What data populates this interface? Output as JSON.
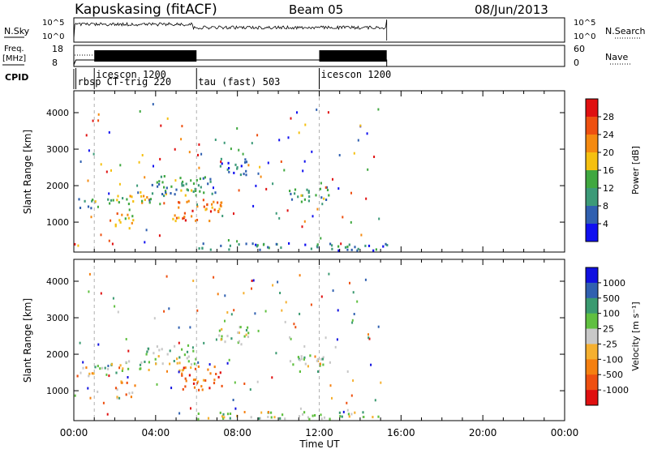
{
  "header": {
    "station": "Kapuskasing (fitACF)",
    "beam": "Beam 05",
    "date": "08/Jun/2013"
  },
  "panels": {
    "noise": {
      "left_label": "N.Sky",
      "right_label": "N.Search",
      "left_ticks": [
        "10^5",
        "10^0"
      ],
      "right_ticks": [
        "10^5",
        "10^0"
      ]
    },
    "freq": {
      "left_label_1": "Freq.",
      "left_label_2": "[MHz]",
      "right_label": "Nave",
      "left_ticks": [
        "18",
        "8"
      ],
      "right_ticks": [
        "60",
        "0"
      ]
    },
    "cpid": {
      "label": "CPID"
    }
  },
  "chart_data": [
    {
      "type": "heatmap",
      "name": "power",
      "ylabel": "Slant Range [km]",
      "xlabel": "Time UT",
      "xlim": [
        0,
        24
      ],
      "ylim": [
        180,
        4600
      ],
      "x_ticks": [
        "00:00",
        "04:00",
        "08:00",
        "12:00",
        "16:00",
        "20:00",
        "00:00"
      ],
      "y_ticks": [
        1000,
        2000,
        3000,
        4000
      ],
      "colorbar": {
        "label": "Power [dB]",
        "ticks": [
          "28",
          "24",
          "20",
          "16",
          "12",
          "8",
          "4"
        ],
        "colors": [
          "#e01010",
          "#ee5010",
          "#f58a10",
          "#f5c010",
          "#40a840",
          "#3c9a78",
          "#3060b0",
          "#1010f0"
        ]
      },
      "clusters": [
        {
          "t": [
            0.05,
            1.0
          ],
          "r": [
            1350,
            1700
          ],
          "level": 6
        },
        {
          "t": [
            1.0,
            3.8
          ],
          "r": [
            1500,
            1850
          ],
          "level": 4
        },
        {
          "t": [
            2.0,
            3.0
          ],
          "r": [
            800,
            1300
          ],
          "level": 3
        },
        {
          "t": [
            3.5,
            6.0
          ],
          "r": [
            1750,
            2300
          ],
          "level": 5
        },
        {
          "t": [
            4.8,
            7.2
          ],
          "r": [
            1050,
            1700
          ],
          "level": 2
        },
        {
          "t": [
            5.8,
            7.0
          ],
          "r": [
            1800,
            2300
          ],
          "level": 6
        },
        {
          "t": [
            10.5,
            12.5
          ],
          "r": [
            1550,
            2000
          ],
          "level": 5
        },
        {
          "t": [
            6.0,
            15.3
          ],
          "r": [
            250,
            450
          ],
          "level": 6
        },
        {
          "t": [
            7.0,
            8.5
          ],
          "r": [
            2300,
            2800
          ],
          "level": 6
        }
      ]
    },
    {
      "type": "heatmap",
      "name": "velocity",
      "ylabel": "Slant Range [km]",
      "xlabel": "Time UT",
      "xlim": [
        0,
        24
      ],
      "ylim": [
        180,
        4600
      ],
      "x_ticks": [
        "00:00",
        "04:00",
        "08:00",
        "12:00",
        "16:00",
        "20:00",
        "00:00"
      ],
      "y_ticks": [
        1000,
        2000,
        3000,
        4000
      ],
      "colorbar": {
        "label": "Velocity [m s⁻¹]",
        "ticks": [
          "1000",
          "500",
          "100",
          "25",
          "-25",
          "-100",
          "-500",
          "-1000"
        ],
        "colors": [
          "#1010e0",
          "#3060b0",
          "#3a9a70",
          "#60c040",
          "#c8c8c8",
          "#f5b030",
          "#f58010",
          "#ee5010",
          "#e01010"
        ]
      },
      "clusters": [
        {
          "t": [
            0.05,
            1.0
          ],
          "r": [
            1350,
            1700
          ],
          "level": 6
        },
        {
          "t": [
            1.0,
            3.8
          ],
          "r": [
            1500,
            1850
          ],
          "level": 4
        },
        {
          "t": [
            2.0,
            3.0
          ],
          "r": [
            800,
            1300
          ],
          "level": 6
        },
        {
          "t": [
            3.5,
            6.0
          ],
          "r": [
            1750,
            2300
          ],
          "level": 4
        },
        {
          "t": [
            5.0,
            7.2
          ],
          "r": [
            1050,
            1700
          ],
          "level": 7
        },
        {
          "t": [
            10.5,
            12.5
          ],
          "r": [
            1550,
            2000
          ],
          "level": 4
        },
        {
          "t": [
            6.0,
            15.3
          ],
          "r": [
            250,
            450
          ],
          "level": 4
        },
        {
          "t": [
            7.0,
            8.5
          ],
          "r": [
            2300,
            2800
          ],
          "level": 4
        }
      ]
    }
  ],
  "cpid_segments": [
    {
      "t": 0.1,
      "label": "rbsp CT-trig 220",
      "row": 2
    },
    {
      "t": 1.0,
      "label": "icescon 1200",
      "row": 1
    },
    {
      "t": 6.0,
      "label": "tau (fast) 503",
      "row": 2
    },
    {
      "t": 12.0,
      "label": "icescon 1200",
      "row": 1
    }
  ]
}
